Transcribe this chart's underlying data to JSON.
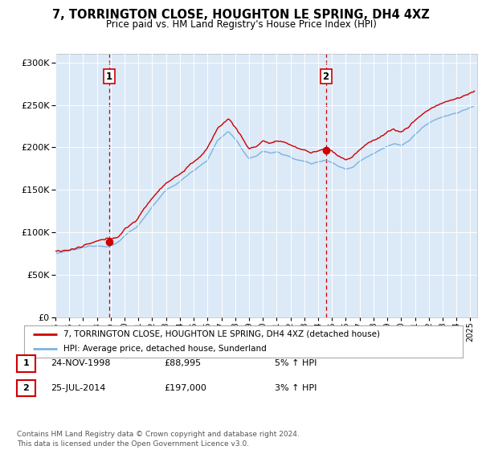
{
  "title": "7, TORRINGTON CLOSE, HOUGHTON LE SPRING, DH4 4XZ",
  "subtitle": "Price paid vs. HM Land Registry's House Price Index (HPI)",
  "background_color": "#dce9f7",
  "fig_bg_color": "#ffffff",
  "hpi_line_color": "#7ab4e0",
  "price_line_color": "#cc0000",
  "dashed_line_color": "#cc0000",
  "annotation1": {
    "label": "1",
    "date_str": "24-NOV-1998",
    "price_str": "£88,995",
    "pct_str": "5% ↑ HPI",
    "x_year": 1998.9
  },
  "annotation2": {
    "label": "2",
    "date_str": "25-JUL-2014",
    "price_str": "£197,000",
    "pct_str": "3% ↑ HPI",
    "x_year": 2014.55
  },
  "legend1": "7, TORRINGTON CLOSE, HOUGHTON LE SPRING, DH4 4XZ (detached house)",
  "legend2": "HPI: Average price, detached house, Sunderland",
  "footer": "Contains HM Land Registry data © Crown copyright and database right 2024.\nThis data is licensed under the Open Government Licence v3.0.",
  "xmin": 1995.0,
  "xmax": 2025.5,
  "ymin": 0,
  "ymax": 310000,
  "yticks": [
    0,
    50000,
    100000,
    150000,
    200000,
    250000,
    300000
  ],
  "sale1_x": 1998.9,
  "sale1_y": 88995,
  "sale2_x": 2014.55,
  "sale2_y": 197000
}
